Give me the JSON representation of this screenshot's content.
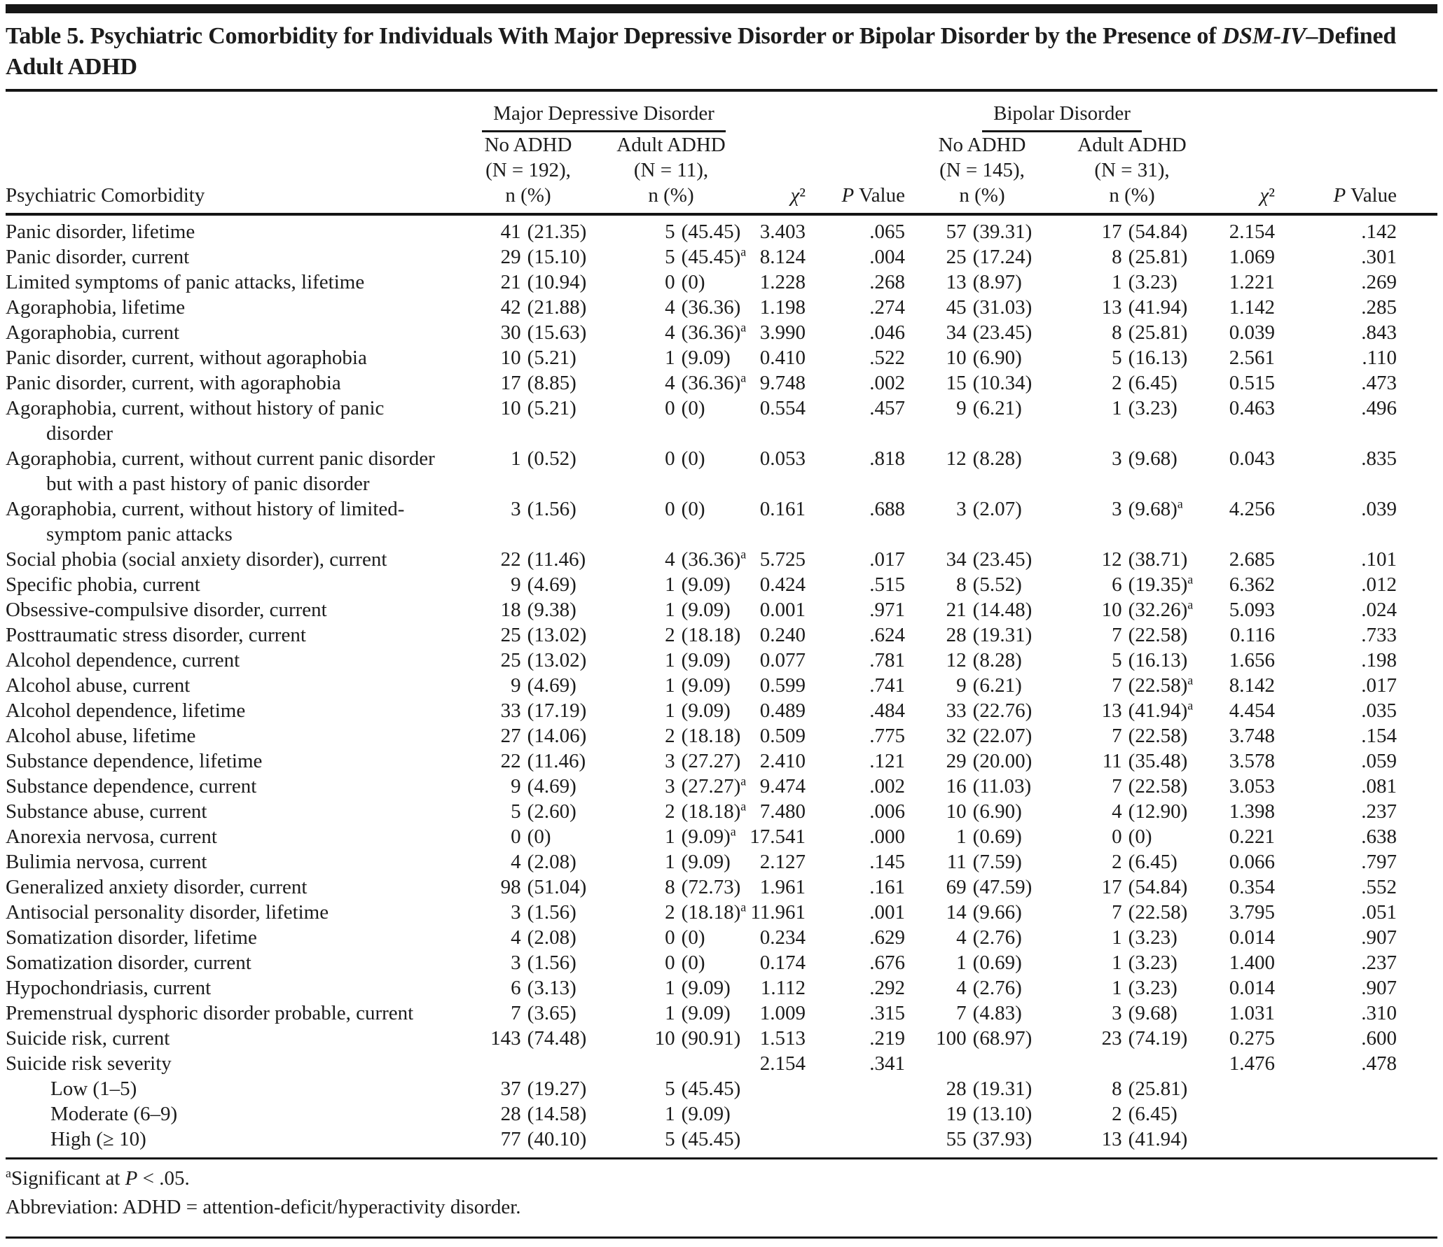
{
  "title": "Table 5. Psychiatric Comorbidity for Individuals With Major Depressive Disorder or Bipolar Disorder by the Presence of *DSM-IV*–Defined Adult ADHD",
  "table": {
    "stub_header": "Psychiatric Comorbidity",
    "groups": [
      {
        "label": "Major Depressive Disorder"
      },
      {
        "label": "Bipolar Disorder"
      }
    ],
    "col_headers": [
      "No ADHD\n(N = 192),\nn (%)",
      "Adult ADHD\n(N = 11),\nn (%)",
      "*χ*²",
      "*P* Value",
      "No ADHD\n(N = 145),\nn (%)",
      "Adult ADHD\n(N = 31),\nn (%)",
      "*χ*²",
      "*P* Value"
    ],
    "rows": [
      {
        "label": "Panic disorder, lifetime",
        "indent": false,
        "cells": [
          "41 (21.35)",
          "5 (45.45)",
          "3.403",
          ".065",
          "57 (39.31)",
          "17 (54.84)",
          "2.154",
          ".142"
        ]
      },
      {
        "label": "Panic disorder, current",
        "indent": false,
        "cells": [
          "29 (15.10)",
          "5 (45.45)^a",
          "8.124",
          ".004",
          "25 (17.24)",
          "8 (25.81)",
          "1.069",
          ".301"
        ]
      },
      {
        "label": "Limited symptoms of panic attacks, lifetime",
        "indent": false,
        "cells": [
          "21 (10.94)",
          "0 (0)",
          "1.228",
          ".268",
          "13 (8.97)",
          "1 (3.23)",
          "1.221",
          ".269"
        ]
      },
      {
        "label": "Agoraphobia, lifetime",
        "indent": false,
        "cells": [
          "42 (21.88)",
          "4 (36.36)",
          "1.198",
          ".274",
          "45 (31.03)",
          "13 (41.94)",
          "1.142",
          ".285"
        ]
      },
      {
        "label": "Agoraphobia, current",
        "indent": false,
        "cells": [
          "30 (15.63)",
          "4 (36.36)^a",
          "3.990",
          ".046",
          "34 (23.45)",
          "8 (25.81)",
          "0.039",
          ".843"
        ]
      },
      {
        "label": "Panic disorder, current, without agoraphobia",
        "indent": false,
        "cells": [
          "10 (5.21)",
          "1 (9.09)",
          "0.410",
          ".522",
          "10 (6.90)",
          "5 (16.13)",
          "2.561",
          ".110"
        ]
      },
      {
        "label": "Panic disorder, current, with agoraphobia",
        "indent": false,
        "cells": [
          "17 (8.85)",
          "4 (36.36)^a",
          "9.748",
          ".002",
          "15 (10.34)",
          "2 (6.45)",
          "0.515",
          ".473"
        ]
      },
      {
        "label": "Agoraphobia, current, without history of panic\ndisorder",
        "indent": false,
        "cells": [
          "10 (5.21)",
          "0 (0)",
          "0.554",
          ".457",
          "9 (6.21)",
          "1 (3.23)",
          "0.463",
          ".496"
        ]
      },
      {
        "label": "Agoraphobia, current, without current panic disorder\nbut with a past history of panic disorder",
        "indent": false,
        "cells": [
          "1 (0.52)",
          "0 (0)",
          "0.053",
          ".818",
          "12 (8.28)",
          "3 (9.68)",
          "0.043",
          ".835"
        ]
      },
      {
        "label": "Agoraphobia, current, without history of limited-\nsymptom panic attacks",
        "indent": false,
        "cells": [
          "3 (1.56)",
          "0 (0)",
          "0.161",
          ".688",
          "3 (2.07)",
          "3 (9.68)^a",
          "4.256",
          ".039"
        ]
      },
      {
        "label": "Social phobia (social anxiety disorder), current",
        "indent": false,
        "cells": [
          "22 (11.46)",
          "4 (36.36)^a",
          "5.725",
          ".017",
          "34 (23.45)",
          "12 (38.71)",
          "2.685",
          ".101"
        ]
      },
      {
        "label": "Specific phobia, current",
        "indent": false,
        "cells": [
          "9 (4.69)",
          "1 (9.09)",
          "0.424",
          ".515",
          "8 (5.52)",
          "6 (19.35)^a",
          "6.362",
          ".012"
        ]
      },
      {
        "label": "Obsessive-compulsive disorder, current",
        "indent": false,
        "cells": [
          "18 (9.38)",
          "1 (9.09)",
          "0.001",
          ".971",
          "21 (14.48)",
          "10 (32.26)^a",
          "5.093",
          ".024"
        ]
      },
      {
        "label": "Posttraumatic stress disorder, current",
        "indent": false,
        "cells": [
          "25 (13.02)",
          "2 (18.18)",
          "0.240",
          ".624",
          "28 (19.31)",
          "7 (22.58)",
          "0.116",
          ".733"
        ]
      },
      {
        "label": "Alcohol dependence, current",
        "indent": false,
        "cells": [
          "25 (13.02)",
          "1 (9.09)",
          "0.077",
          ".781",
          "12 (8.28)",
          "5 (16.13)",
          "1.656",
          ".198"
        ]
      },
      {
        "label": "Alcohol abuse, current",
        "indent": false,
        "cells": [
          "9 (4.69)",
          "1 (9.09)",
          "0.599",
          ".741",
          "9 (6.21)",
          "7 (22.58)^a",
          "8.142",
          ".017"
        ]
      },
      {
        "label": "Alcohol dependence, lifetime",
        "indent": false,
        "cells": [
          "33 (17.19)",
          "1 (9.09)",
          "0.489",
          ".484",
          "33 (22.76)",
          "13 (41.94)^a",
          "4.454",
          ".035"
        ]
      },
      {
        "label": "Alcohol abuse, lifetime",
        "indent": false,
        "cells": [
          "27 (14.06)",
          "2 (18.18)",
          "0.509",
          ".775",
          "32 (22.07)",
          "7 (22.58)",
          "3.748",
          ".154"
        ]
      },
      {
        "label": "Substance dependence, lifetime",
        "indent": false,
        "cells": [
          "22 (11.46)",
          "3 (27.27)",
          "2.410",
          ".121",
          "29 (20.00)",
          "11 (35.48)",
          "3.578",
          ".059"
        ]
      },
      {
        "label": "Substance dependence, current",
        "indent": false,
        "cells": [
          "9 (4.69)",
          "3 (27.27)^a",
          "9.474",
          ".002",
          "16 (11.03)",
          "7 (22.58)",
          "3.053",
          ".081"
        ]
      },
      {
        "label": "Substance abuse, current",
        "indent": false,
        "cells": [
          "5 (2.60)",
          "2 (18.18)^a",
          "7.480",
          ".006",
          "10 (6.90)",
          "4 (12.90)",
          "1.398",
          ".237"
        ]
      },
      {
        "label": "Anorexia nervosa, current",
        "indent": false,
        "cells": [
          "0 (0)",
          "1 (9.09)^a",
          "17.541",
          ".000",
          "1 (0.69)",
          "0 (0)",
          "0.221",
          ".638"
        ]
      },
      {
        "label": "Bulimia nervosa, current",
        "indent": false,
        "cells": [
          "4 (2.08)",
          "1 (9.09)",
          "2.127",
          ".145",
          "11 (7.59)",
          "2 (6.45)",
          "0.066",
          ".797"
        ]
      },
      {
        "label": "Generalized anxiety disorder, current",
        "indent": false,
        "cells": [
          "98 (51.04)",
          "8 (72.73)",
          "1.961",
          ".161",
          "69 (47.59)",
          "17 (54.84)",
          "0.354",
          ".552"
        ]
      },
      {
        "label": "Antisocial personality disorder, lifetime",
        "indent": false,
        "cells": [
          "3 (1.56)",
          "2 (18.18)^a",
          "11.961",
          ".001",
          "14 (9.66)",
          "7 (22.58)",
          "3.795",
          ".051"
        ]
      },
      {
        "label": "Somatization disorder, lifetime",
        "indent": false,
        "cells": [
          "4 (2.08)",
          "0 (0)",
          "0.234",
          ".629",
          "4 (2.76)",
          "1 (3.23)",
          "0.014",
          ".907"
        ]
      },
      {
        "label": "Somatization disorder, current",
        "indent": false,
        "cells": [
          "3 (1.56)",
          "0 (0)",
          "0.174",
          ".676",
          "1 (0.69)",
          "1 (3.23)",
          "1.400",
          ".237"
        ]
      },
      {
        "label": "Hypochondriasis, current",
        "indent": false,
        "cells": [
          "6 (3.13)",
          "1 (9.09)",
          "1.112",
          ".292",
          "4 (2.76)",
          "1 (3.23)",
          "0.014",
          ".907"
        ]
      },
      {
        "label": "Premenstrual dysphoric disorder probable, current",
        "indent": false,
        "cells": [
          "7 (3.65)",
          "1 (9.09)",
          "1.009",
          ".315",
          "7 (4.83)",
          "3 (9.68)",
          "1.031",
          ".310"
        ]
      },
      {
        "label": "Suicide risk, current",
        "indent": false,
        "cells": [
          "143 (74.48)",
          "10 (90.91)",
          "1.513",
          ".219",
          "100 (68.97)",
          "23 (74.19)",
          "0.275",
          ".600"
        ]
      },
      {
        "label": "Suicide risk severity",
        "indent": false,
        "cells": [
          "",
          "",
          "2.154",
          ".341",
          "",
          "",
          "1.476",
          ".478"
        ]
      },
      {
        "label": "Low (1–5)",
        "indent": true,
        "cells": [
          "37 (19.27)",
          "5 (45.45)",
          "",
          "",
          "28 (19.31)",
          "8 (25.81)",
          "",
          ""
        ]
      },
      {
        "label": "Moderate (6–9)",
        "indent": true,
        "cells": [
          "28 (14.58)",
          "1 (9.09)",
          "",
          "",
          "19 (13.10)",
          "2 (6.45)",
          "",
          ""
        ]
      },
      {
        "label": "High (≥ 10)",
        "indent": true,
        "cells": [
          "77 (40.10)",
          "5 (45.45)",
          "",
          "",
          "55 (37.93)",
          "13 (41.94)",
          "",
          ""
        ]
      }
    ]
  },
  "footnotes": [
    "^aSignificant at *P* < .05.",
    "Abbreviation: ADHD = attention-deficit/hyperactivity disorder."
  ]
}
